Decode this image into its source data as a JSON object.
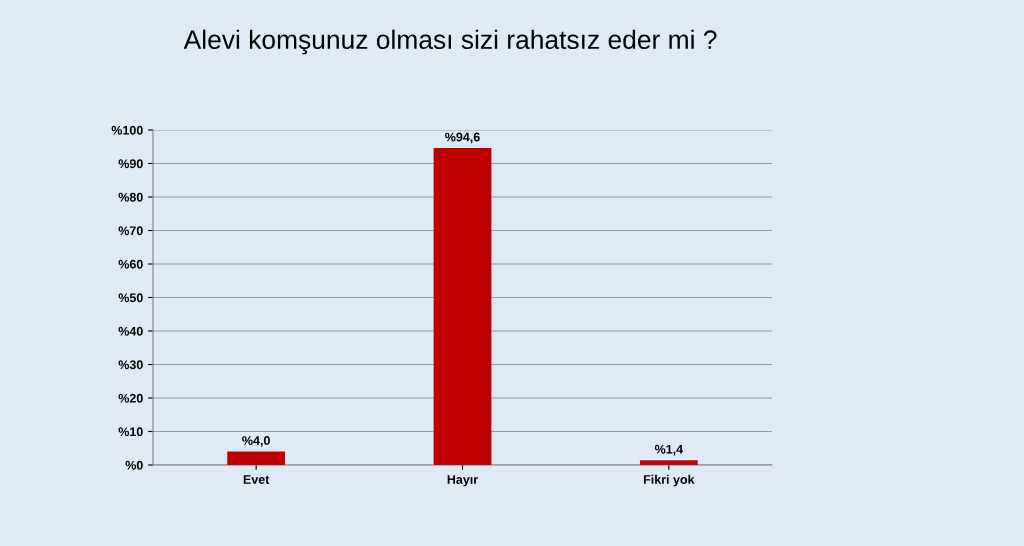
{
  "chart_data": {
    "type": "bar",
    "title": "Alevi komşunuz olması sizi rahatsız eder mi ?",
    "categories": [
      "Evet",
      "Hayır",
      "Fikri yok"
    ],
    "values": [
      4.0,
      94.6,
      1.4
    ],
    "color": "#c00000",
    "value_labels": [
      "%4,0",
      "%94,6",
      "%1,4"
    ],
    "ylim": [
      0,
      100
    ],
    "yticks": [
      {
        "value": 0,
        "label": "%0"
      },
      {
        "value": 10,
        "label": "%10"
      },
      {
        "value": 20,
        "label": "%20"
      },
      {
        "value": 30,
        "label": "%30"
      },
      {
        "value": 40,
        "label": "%40"
      },
      {
        "value": 50,
        "label": "%50"
      },
      {
        "value": 60,
        "label": "%60"
      },
      {
        "value": 70,
        "label": "%70"
      },
      {
        "value": 80,
        "label": "%80"
      },
      {
        "value": 90,
        "label": "%90"
      },
      {
        "value": 100,
        "label": "%100"
      }
    ],
    "grid": "y",
    "legend": false
  }
}
